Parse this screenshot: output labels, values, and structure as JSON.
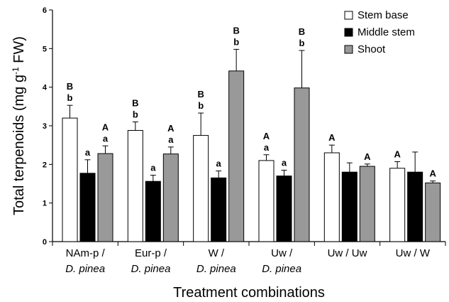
{
  "chart_data": {
    "type": "bar",
    "xlabel": "Treatment combinations",
    "ylabel_main": "Total terpenoids (mg g",
    "ylabel_sup": "-1",
    "ylabel_end": " FW)",
    "ylim": [
      0,
      6
    ],
    "yticks": [
      "0",
      "1",
      "2",
      "3",
      "4",
      "5",
      "6"
    ],
    "grid": false,
    "legend_position": "top-right",
    "categories": [
      {
        "line1": "NAm-p /",
        "line2": "D. pinea"
      },
      {
        "line1": "Eur-p /",
        "line2": "D. pinea"
      },
      {
        "line1": "W /",
        "line2": "D. pinea"
      },
      {
        "line1": "Uw /",
        "line2": "D. pinea"
      },
      {
        "line1": "Uw / Uw",
        "line2": ""
      },
      {
        "line1": "Uw / W",
        "line2": ""
      }
    ],
    "series": [
      {
        "name": "Stem base",
        "color": "#ffffff",
        "values": [
          3.2,
          2.88,
          2.75,
          2.1,
          2.3,
          1.9
        ],
        "errors": [
          0.33,
          0.22,
          0.58,
          0.15,
          0.2,
          0.17
        ],
        "labels": [
          [
            "B",
            "b"
          ],
          [
            "B",
            "b"
          ],
          [
            "B",
            "b"
          ],
          [
            "A",
            "a"
          ],
          [
            "A"
          ],
          [
            "A"
          ]
        ]
      },
      {
        "name": "Middle stem",
        "color": "#000000",
        "values": [
          1.77,
          1.56,
          1.65,
          1.7,
          1.8,
          1.8
        ],
        "errors": [
          0.35,
          0.16,
          0.18,
          0.15,
          0.24,
          0.52
        ],
        "labels": [
          [
            "a"
          ],
          [
            "a"
          ],
          [
            "a"
          ],
          [
            "a"
          ],
          [],
          []
        ]
      },
      {
        "name": "Shoot",
        "color": "#999999",
        "values": [
          2.28,
          2.27,
          4.42,
          3.98,
          1.95,
          1.52
        ],
        "errors": [
          0.2,
          0.18,
          0.56,
          0.97,
          0.06,
          0.05
        ],
        "labels": [
          [
            "A",
            "a"
          ],
          [
            "A",
            "a"
          ],
          [
            "B",
            "b"
          ],
          [
            "B",
            "b"
          ],
          [
            "A"
          ],
          [
            "A"
          ]
        ]
      }
    ]
  }
}
